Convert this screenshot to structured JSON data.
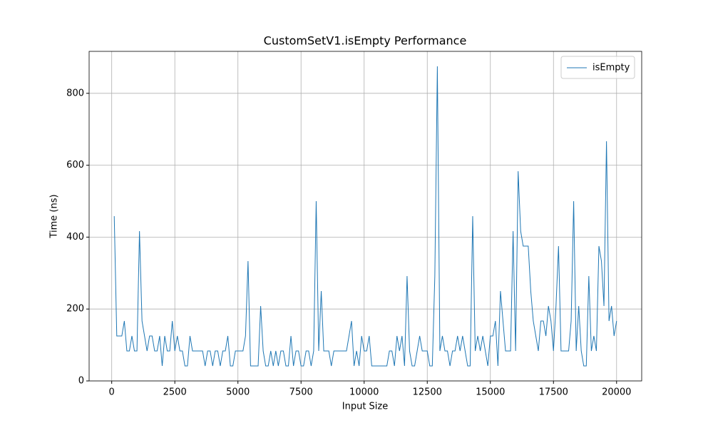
{
  "chart_data": {
    "type": "line",
    "title": "CustomSetV1.isEmpty Performance",
    "x_label": "Input Size",
    "y_label": "Time (ns)",
    "x": [
      100,
      200,
      300,
      400,
      500,
      600,
      700,
      800,
      900,
      1000,
      1100,
      1200,
      1300,
      1400,
      1500,
      1600,
      1700,
      1800,
      1900,
      2000,
      2100,
      2200,
      2300,
      2400,
      2500,
      2600,
      2700,
      2800,
      2900,
      3000,
      3100,
      3200,
      3300,
      3400,
      3500,
      3600,
      3700,
      3800,
      3900,
      4000,
      4100,
      4200,
      4300,
      4400,
      4500,
      4600,
      4700,
      4800,
      4900,
      5000,
      5100,
      5200,
      5300,
      5400,
      5500,
      5600,
      5700,
      5800,
      5900,
      6000,
      6100,
      6200,
      6300,
      6400,
      6500,
      6600,
      6700,
      6800,
      6900,
      7000,
      7100,
      7200,
      7300,
      7400,
      7500,
      7600,
      7700,
      7800,
      7900,
      8000,
      8100,
      8200,
      8300,
      8400,
      8500,
      8600,
      8700,
      8800,
      8900,
      9000,
      9100,
      9200,
      9300,
      9400,
      9500,
      9600,
      9700,
      9800,
      9900,
      10000,
      10100,
      10200,
      10300,
      10400,
      10500,
      10600,
      10700,
      10800,
      10900,
      11000,
      11100,
      11200,
      11300,
      11400,
      11500,
      11600,
      11700,
      11800,
      11900,
      12000,
      12100,
      12200,
      12300,
      12400,
      12500,
      12600,
      12700,
      12800,
      12900,
      13000,
      13100,
      13200,
      13300,
      13400,
      13500,
      13600,
      13700,
      13800,
      13900,
      14000,
      14100,
      14200,
      14300,
      14400,
      14500,
      14600,
      14700,
      14800,
      14900,
      15000,
      15100,
      15200,
      15300,
      15400,
      15500,
      15600,
      15700,
      15800,
      15900,
      16000,
      16100,
      16200,
      16300,
      16400,
      16500,
      16600,
      16700,
      16800,
      16900,
      17000,
      17100,
      17200,
      17300,
      17400,
      17500,
      17600,
      17700,
      17800,
      17900,
      18000,
      18100,
      18200,
      18300,
      18400,
      18500,
      18600,
      18700,
      18800,
      18900,
      19000,
      19100,
      19200,
      19300,
      19400,
      19500,
      19600,
      19700,
      19800,
      19900,
      20000
    ],
    "series": [
      {
        "name": "isEmpty",
        "color": "#1f77b4",
        "values": [
          458.3,
          125,
          125,
          125,
          166.7,
          83.3,
          83.3,
          125,
          83.3,
          83.3,
          416.7,
          166.7,
          125,
          83.3,
          125,
          125,
          83.3,
          83.3,
          125,
          41.7,
          125,
          83.3,
          83.3,
          166.7,
          83.3,
          125,
          83.3,
          83.3,
          41.7,
          41.7,
          125,
          83.3,
          83.3,
          83.3,
          83.3,
          83.3,
          41.7,
          83.3,
          83.3,
          41.7,
          83.3,
          83.3,
          41.7,
          83.3,
          83.3,
          125,
          41.7,
          41.7,
          83.3,
          83.3,
          83.3,
          83.3,
          125,
          333.3,
          41.7,
          41.7,
          41.7,
          41.7,
          208.3,
          83.3,
          41.7,
          41.7,
          83.3,
          41.7,
          83.3,
          41.7,
          83.3,
          83.3,
          41.7,
          41.7,
          125,
          41.7,
          83.3,
          83.3,
          41.7,
          41.7,
          83.3,
          83.3,
          41.7,
          83.3,
          500,
          83.3,
          250,
          83.3,
          83.3,
          83.3,
          41.7,
          83.3,
          83.3,
          83.3,
          83.3,
          83.3,
          83.3,
          125,
          166.7,
          41.7,
          83.3,
          41.7,
          125,
          83.3,
          83.3,
          125,
          41.7,
          41.7,
          41.7,
          41.7,
          41.7,
          41.7,
          41.7,
          83.3,
          83.3,
          41.7,
          125,
          83.3,
          125,
          41.7,
          291.7,
          83.3,
          41.7,
          41.7,
          83.3,
          125,
          83.3,
          83.3,
          83.3,
          41.7,
          41.7,
          291.7,
          875,
          83.3,
          125,
          83.3,
          83.3,
          41.7,
          83.3,
          83.3,
          125,
          83.3,
          125,
          83.3,
          41.7,
          41.7,
          458.3,
          83.3,
          125,
          83.3,
          125,
          83.3,
          41.7,
          125,
          125,
          166.7,
          41.7,
          250,
          166.7,
          83.3,
          83.3,
          83.3,
          416.7,
          83.3,
          583.3,
          416.7,
          375,
          375,
          375,
          250,
          166.7,
          125,
          83.3,
          166.7,
          166.7,
          125,
          208.3,
          166.7,
          83.3,
          208.3,
          375,
          83.3,
          83.3,
          83.3,
          83.3,
          166.7,
          500,
          83.3,
          208.3,
          83.3,
          41.7,
          41.7,
          291.7,
          83.3,
          125,
          83.3,
          375,
          333.3,
          208.3,
          666.7,
          166.7,
          208.3,
          125,
          166.7
        ]
      }
    ],
    "xlim": [
      -895,
      20995
    ],
    "ylim": [
      0,
      916.7
    ],
    "xticks": [
      0,
      2500,
      5000,
      7500,
      10000,
      12500,
      15000,
      17500,
      20000
    ],
    "yticks": [
      0,
      200,
      400,
      600,
      800
    ],
    "grid": true,
    "legend": "upper right"
  }
}
